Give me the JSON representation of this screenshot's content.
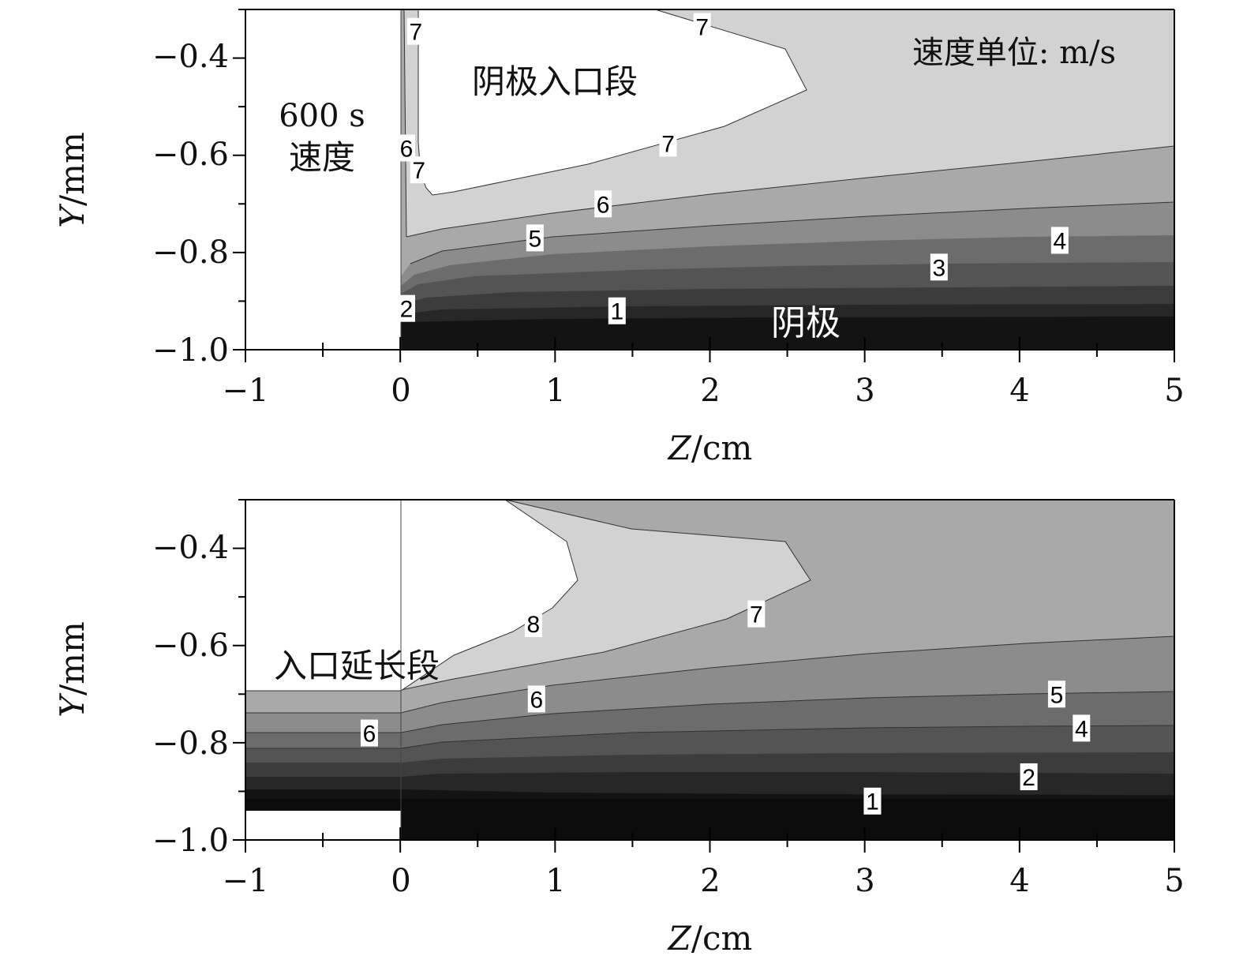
{
  "chart_data": [
    {
      "type": "contour",
      "panel": "top",
      "xlabel_var": "Z",
      "xlabel_unit": "/cm",
      "ylabel_var": "Y",
      "ylabel_unit": "/mm",
      "xlim": [
        -1,
        5
      ],
      "ylim": [
        -1.0,
        -0.3
      ],
      "xticks": [
        "−1",
        "0",
        "1",
        "2",
        "3",
        "4",
        "5"
      ],
      "yticks": [
        "−0.4",
        "−0.6",
        "−0.8",
        "−1.0"
      ],
      "annotations": {
        "time_line1": "600 s",
        "time_line2": "速度",
        "region": "阴极入口段",
        "units": "速度单位: m/s",
        "cathode": "阴极"
      },
      "contour_labels": [
        {
          "text": "7",
          "z": 0.1,
          "y": -0.345
        },
        {
          "text": "7",
          "z": 1.95,
          "y": -0.335
        },
        {
          "text": "6",
          "z": 0.04,
          "y": -0.585
        },
        {
          "text": "7",
          "z": 0.12,
          "y": -0.63
        },
        {
          "text": "7",
          "z": 1.73,
          "y": -0.575
        },
        {
          "text": "6",
          "z": 1.31,
          "y": -0.7
        },
        {
          "text": "5",
          "z": 0.87,
          "y": -0.77
        },
        {
          "text": "4",
          "z": 4.26,
          "y": -0.775
        },
        {
          "text": "3",
          "z": 3.48,
          "y": -0.83
        },
        {
          "text": "2",
          "z": 0.04,
          "y": -0.915
        },
        {
          "text": "1",
          "z": 1.4,
          "y": -0.92
        }
      ]
    },
    {
      "type": "contour",
      "panel": "bottom",
      "xlabel_var": "Z",
      "xlabel_unit": "/cm",
      "ylabel_var": "Y",
      "ylabel_unit": "/mm",
      "xlim": [
        -1,
        5
      ],
      "ylim": [
        -1.0,
        -0.3
      ],
      "xticks": [
        "−1",
        "0",
        "1",
        "2",
        "3",
        "4",
        "5"
      ],
      "yticks": [
        "−0.4",
        "−0.6",
        "−0.8",
        "−1.0"
      ],
      "annotations": {
        "region": "入口延长段"
      },
      "contour_labels": [
        {
          "text": "8",
          "z": 0.86,
          "y": -0.555
        },
        {
          "text": "7",
          "z": 2.3,
          "y": -0.535
        },
        {
          "text": "6",
          "z": -0.2,
          "y": -0.78
        },
        {
          "text": "6",
          "z": 0.88,
          "y": -0.71
        },
        {
          "text": "5",
          "z": 4.24,
          "y": -0.7
        },
        {
          "text": "4",
          "z": 4.4,
          "y": -0.77
        },
        {
          "text": "2",
          "z": 4.06,
          "y": -0.87
        },
        {
          "text": "1",
          "z": 3.05,
          "y": -0.92
        }
      ]
    }
  ]
}
